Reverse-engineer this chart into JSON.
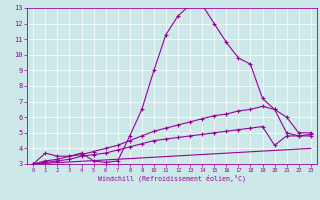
{
  "xlabel": "Windchill (Refroidissement éolien,°C)",
  "ylabel": "",
  "background_color": "#cce8e8",
  "grid_color": "#ffffff",
  "line_color": "#990099",
  "xlim": [
    -0.5,
    23.5
  ],
  "ylim": [
    3,
    13
  ],
  "x_ticks": [
    0,
    1,
    2,
    3,
    4,
    5,
    6,
    7,
    8,
    9,
    10,
    11,
    12,
    13,
    14,
    15,
    16,
    17,
    18,
    19,
    20,
    21,
    22,
    23
  ],
  "y_ticks": [
    3,
    4,
    5,
    6,
    7,
    8,
    9,
    10,
    11,
    12,
    13
  ],
  "line1_x": [
    0,
    1,
    2,
    3,
    4,
    5,
    6,
    7,
    8,
    9,
    10,
    11,
    12,
    13,
    14,
    15,
    16,
    17,
    18,
    19,
    20,
    21,
    22,
    23
  ],
  "line1_y": [
    3.0,
    3.7,
    3.5,
    3.5,
    3.7,
    3.2,
    3.1,
    3.2,
    4.8,
    6.5,
    9.0,
    11.3,
    12.5,
    13.2,
    13.2,
    12.0,
    10.8,
    9.8,
    9.4,
    7.2,
    6.5,
    5.0,
    4.8,
    4.9
  ],
  "line2_x": [
    0,
    1,
    2,
    3,
    4,
    5,
    6,
    7,
    8,
    9,
    10,
    11,
    12,
    13,
    14,
    15,
    16,
    17,
    18,
    19,
    20,
    21,
    22,
    23
  ],
  "line2_y": [
    3.0,
    3.2,
    3.3,
    3.5,
    3.6,
    3.8,
    4.0,
    4.2,
    4.5,
    4.8,
    5.1,
    5.3,
    5.5,
    5.7,
    5.9,
    6.1,
    6.2,
    6.4,
    6.5,
    6.7,
    6.5,
    6.0,
    5.0,
    5.0
  ],
  "line3_x": [
    0,
    1,
    2,
    3,
    4,
    5,
    6,
    7,
    8,
    9,
    10,
    11,
    12,
    13,
    14,
    15,
    16,
    17,
    18,
    19,
    20,
    21,
    22,
    23
  ],
  "line3_y": [
    3.0,
    3.1,
    3.2,
    3.3,
    3.5,
    3.6,
    3.7,
    3.9,
    4.1,
    4.3,
    4.5,
    4.6,
    4.7,
    4.8,
    4.9,
    5.0,
    5.1,
    5.2,
    5.3,
    5.4,
    4.2,
    4.8,
    4.8,
    4.8
  ],
  "line4_x": [
    0,
    23
  ],
  "line4_y": [
    3.0,
    4.0
  ]
}
